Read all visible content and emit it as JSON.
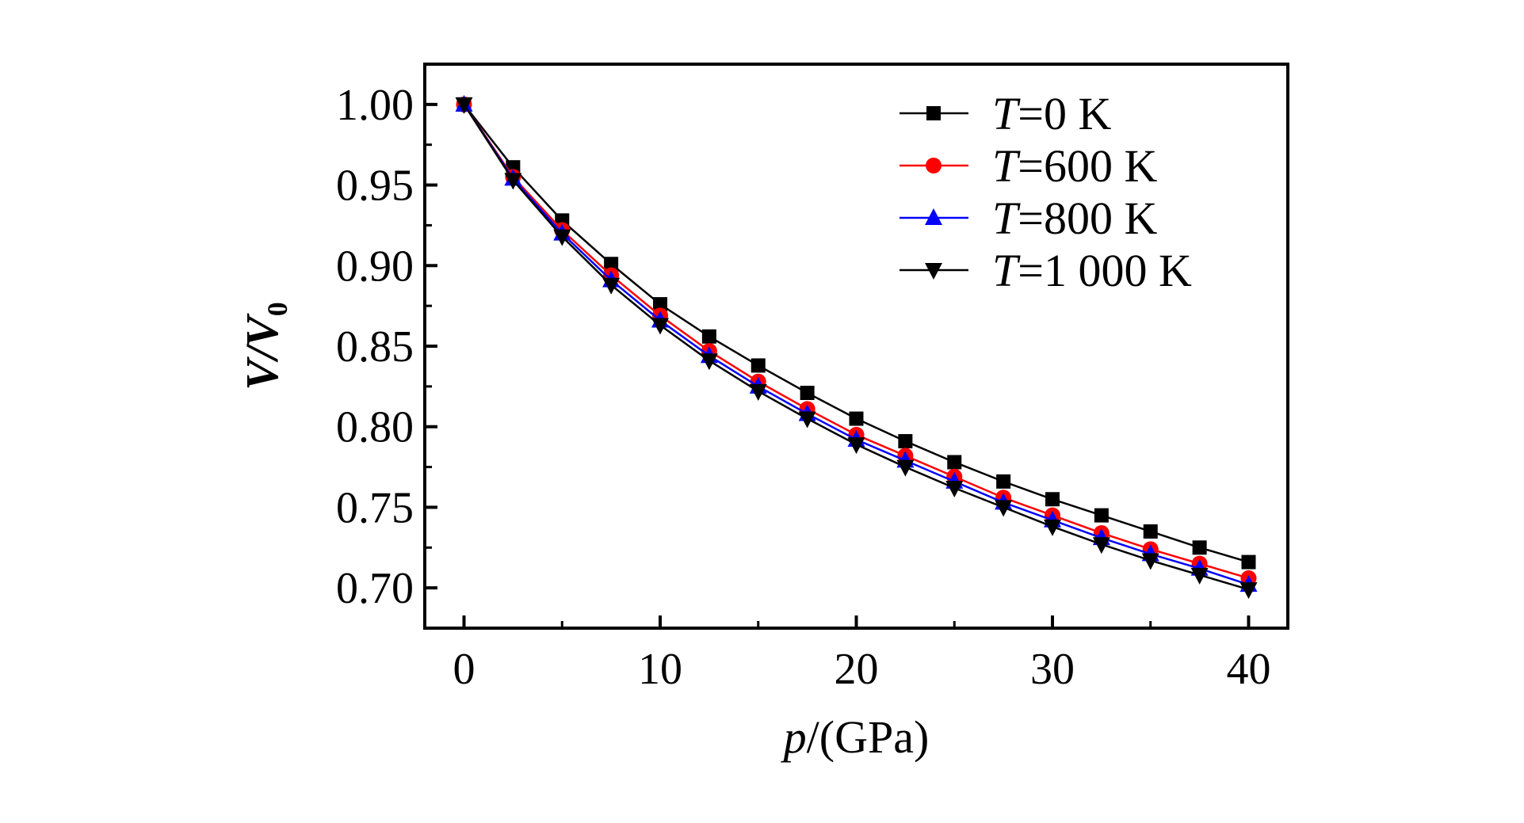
{
  "chart_data": {
    "type": "line",
    "title": "",
    "xlabel": "p/(GPa)",
    "xlabel_italic": "p",
    "xlabel_rest": "/(GPa)",
    "ylabel": "V/V0",
    "ylabel_main": "V/V",
    "ylabel_sub": "0",
    "xlim": [
      -2,
      42
    ],
    "ylim": [
      0.675,
      1.025
    ],
    "xticks": [
      0,
      10,
      20,
      30,
      40
    ],
    "xtick_labels": [
      "0",
      "10",
      "20",
      "30",
      "40"
    ],
    "xminor": [
      5,
      15,
      25,
      35
    ],
    "yticks": [
      0.7,
      0.75,
      0.8,
      0.85,
      0.9,
      0.95,
      1.0
    ],
    "ytick_labels": [
      "0.70",
      "0.75",
      "0.80",
      "0.85",
      "0.90",
      "0.95",
      "1.00"
    ],
    "yminor": [
      0.725,
      0.775,
      0.825,
      0.875,
      0.925,
      0.975
    ],
    "grid": false,
    "legend_position": "top-right",
    "x": [
      0,
      2.5,
      5,
      7.5,
      10,
      12.5,
      15,
      17.5,
      20,
      22.5,
      25,
      27.5,
      30,
      32.5,
      35,
      37.5,
      40
    ],
    "series": [
      {
        "name": "T=0 K",
        "name_italic": "T",
        "name_rest": "=0 K",
        "color": "#000000",
        "marker": "square",
        "values": [
          1.0,
          0.961,
          0.928,
          0.901,
          0.876,
          0.856,
          0.838,
          0.821,
          0.805,
          0.791,
          0.778,
          0.766,
          0.755,
          0.745,
          0.735,
          0.725,
          0.716
        ]
      },
      {
        "name": "T=600 K",
        "name_italic": "T",
        "name_rest": "=600 K",
        "color": "#ff0000",
        "marker": "circle",
        "values": [
          1.0,
          0.955,
          0.922,
          0.894,
          0.869,
          0.847,
          0.828,
          0.811,
          0.795,
          0.782,
          0.769,
          0.756,
          0.745,
          0.734,
          0.724,
          0.715,
          0.706
        ]
      },
      {
        "name": "T=800 K",
        "name_italic": "T",
        "name_rest": "=800 K",
        "color": "#0000ff",
        "marker": "triangle-up",
        "values": [
          1.0,
          0.954,
          0.92,
          0.891,
          0.866,
          0.844,
          0.825,
          0.808,
          0.792,
          0.779,
          0.766,
          0.753,
          0.742,
          0.731,
          0.721,
          0.712,
          0.702
        ]
      },
      {
        "name": "T=1 000 K",
        "name_italic": "T",
        "name_rest": "=1 000 K",
        "color": "#000000",
        "marker": "triangle-down",
        "values": [
          1.0,
          0.953,
          0.918,
          0.888,
          0.863,
          0.841,
          0.822,
          0.805,
          0.789,
          0.775,
          0.762,
          0.75,
          0.738,
          0.727,
          0.717,
          0.708,
          0.699
        ]
      }
    ]
  }
}
